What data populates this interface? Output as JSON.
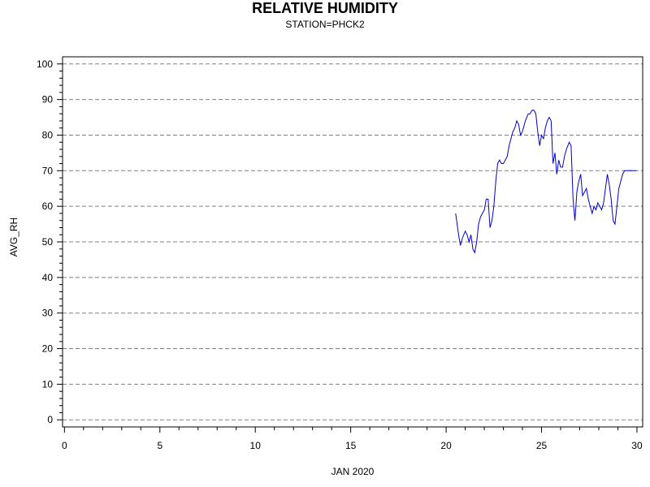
{
  "chart_data": {
    "type": "line",
    "title": "RELATIVE HUMIDITY",
    "subtitle": "STATION=PHCK2",
    "xlabel": "JAN 2020",
    "ylabel": "AVG_RH",
    "xlim": [
      -0.1,
      30.3
    ],
    "ylim": [
      -2,
      102
    ],
    "x_ticks": [
      0,
      5,
      10,
      15,
      20,
      25,
      30
    ],
    "y_ticks": [
      0,
      10,
      20,
      30,
      40,
      50,
      60,
      70,
      80,
      90,
      100
    ],
    "grid": "horizontal dashed",
    "line_color": "#0000cc",
    "series": [
      {
        "x": [
          20.5,
          20.65,
          20.75,
          20.85,
          21.0,
          21.1,
          21.2,
          21.3,
          21.4,
          21.5,
          21.6,
          21.7,
          21.8,
          21.9,
          22.0,
          22.1,
          22.2,
          22.3,
          22.4,
          22.5,
          22.6,
          22.7,
          22.8,
          22.9,
          23.0,
          23.1,
          23.2,
          23.3,
          23.4,
          23.5,
          23.6,
          23.7,
          23.8,
          23.9,
          24.0,
          24.15,
          24.3,
          24.4,
          24.5,
          24.6,
          24.7,
          24.8,
          24.9,
          25.0,
          25.1,
          25.2,
          25.3,
          25.4,
          25.5,
          25.6,
          25.7,
          25.8,
          25.9,
          26.0,
          26.1,
          26.2,
          26.3,
          26.45,
          26.55,
          26.65,
          26.75,
          26.85,
          26.95,
          27.05,
          27.15,
          27.25,
          27.35,
          27.45,
          27.55,
          27.65,
          27.75,
          27.85,
          27.95,
          28.05,
          28.15,
          28.25,
          28.35,
          28.45,
          28.55,
          28.65,
          28.75,
          28.85,
          28.95,
          29.05,
          29.15,
          29.25,
          29.35,
          29.45,
          29.55,
          29.65,
          29.75,
          29.85,
          29.95
        ],
        "values": [
          58,
          52,
          49,
          51,
          53,
          52,
          50,
          52,
          48,
          47,
          50,
          55,
          57,
          58,
          59,
          62,
          62,
          54,
          56,
          60,
          67,
          72,
          73,
          72,
          72,
          73,
          74,
          77,
          79,
          81,
          82,
          84,
          83,
          80,
          81,
          84,
          86,
          86,
          87,
          87,
          86,
          81,
          77,
          80,
          79,
          82,
          84,
          85,
          84,
          72,
          75,
          69,
          73,
          71,
          71,
          74,
          76,
          78,
          77,
          62,
          56,
          64,
          67,
          69,
          63,
          64,
          65,
          62,
          60,
          58,
          60,
          59,
          61,
          60,
          59,
          61,
          65,
          69,
          66,
          62,
          56,
          55,
          60,
          65,
          67,
          69,
          70,
          70,
          70,
          70,
          70,
          70,
          70
        ]
      }
    ]
  }
}
